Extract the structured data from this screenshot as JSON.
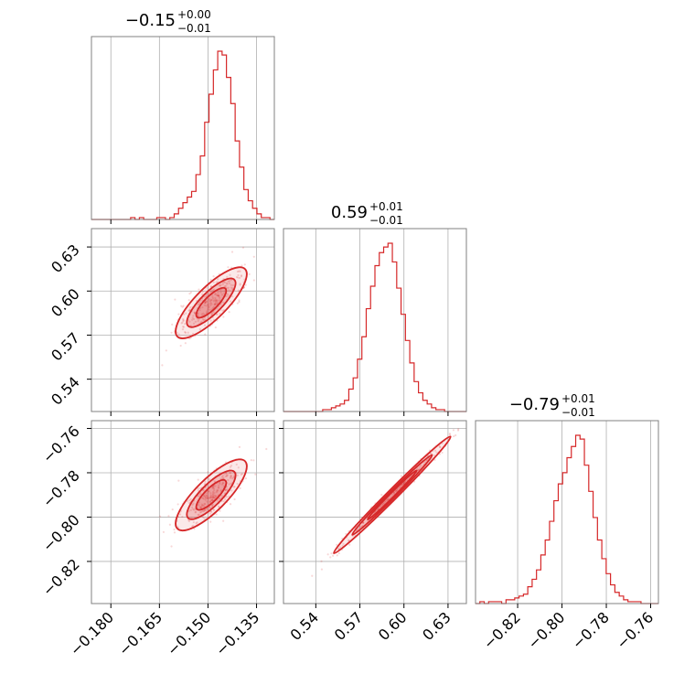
{
  "chart_data": {
    "type": "corner",
    "color": "#d62728",
    "parameters": [
      {
        "title_value": "−0.15",
        "title_plus": "+0.00",
        "title_minus": "−0.01",
        "range": [
          -0.186,
          -0.1295
        ],
        "ticks": [
          -0.18,
          -0.165,
          -0.15,
          -0.135
        ],
        "tick_labels": [
          "−0.180",
          "−0.165",
          "−0.150",
          "−0.135"
        ]
      },
      {
        "title_value": "0.59",
        "title_plus": "+0.01",
        "title_minus": "−0.01",
        "range": [
          0.518,
          0.6425
        ],
        "ticks": [
          0.54,
          0.57,
          0.6,
          0.63
        ],
        "tick_labels": [
          "0.54",
          "0.57",
          "0.60",
          "0.63"
        ]
      },
      {
        "title_value": "−0.79",
        "title_plus": "+0.01",
        "title_minus": "−0.01",
        "range": [
          -0.839,
          -0.7565
        ],
        "ticks": [
          -0.82,
          -0.8,
          -0.78,
          -0.76
        ],
        "tick_labels": [
          "−0.82",
          "−0.80",
          "−0.78",
          "−0.76"
        ]
      }
    ],
    "histograms": [
      [
        0,
        0,
        0,
        0,
        0,
        0,
        0,
        0,
        0,
        1,
        0,
        1,
        0,
        0,
        0,
        1,
        1,
        0,
        1,
        3,
        6,
        9,
        12,
        15,
        24,
        34,
        52,
        67,
        80,
        90,
        88,
        76,
        62,
        42,
        28,
        16,
        10,
        6,
        3,
        1,
        1,
        0
      ],
      [
        0,
        0,
        0,
        0,
        0,
        0,
        0,
        0,
        0,
        1,
        1,
        2,
        3,
        4,
        6,
        12,
        18,
        28,
        40,
        55,
        67,
        78,
        85,
        88,
        90,
        80,
        66,
        52,
        38,
        26,
        16,
        10,
        6,
        4,
        2,
        1,
        1,
        0,
        0,
        0,
        0,
        0
      ],
      [
        0,
        1,
        0,
        1,
        1,
        1,
        0,
        2,
        2,
        3,
        4,
        5,
        9,
        13,
        18,
        26,
        34,
        44,
        55,
        64,
        70,
        78,
        84,
        90,
        88,
        74,
        60,
        46,
        34,
        24,
        16,
        10,
        6,
        4,
        2,
        1,
        1,
        1,
        0,
        0,
        0,
        0
      ]
    ],
    "pair_correlations": [
      {
        "x_param": 0,
        "y_param": 1,
        "center": [
          -0.149,
          0.592
        ],
        "rho": 0.96
      },
      {
        "x_param": 0,
        "y_param": 2,
        "center": [
          -0.149,
          -0.79
        ],
        "rho": 0.96
      },
      {
        "x_param": 1,
        "y_param": 2,
        "center": [
          0.592,
          -0.79
        ],
        "rho": 0.997
      }
    ],
    "grid": true
  }
}
